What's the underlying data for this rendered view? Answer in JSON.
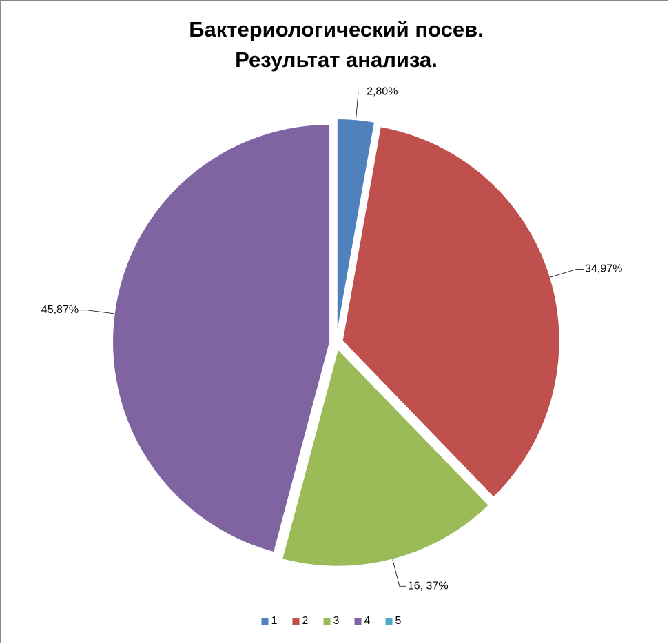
{
  "chart_data": {
    "type": "pie",
    "title": [
      "Бактериологический посев.",
      "Результат анализа."
    ],
    "categories": [
      "1",
      "2",
      "3",
      "4",
      "5"
    ],
    "values": [
      2.8,
      34.97,
      16.37,
      45.87,
      0
    ],
    "value_labels": [
      "2,80%",
      "34,97%",
      "16, 37%",
      "45,87%",
      null
    ],
    "colors": [
      "#4f81bd",
      "#c0504d",
      "#9bbb59",
      "#8064a2",
      "#4bacc6"
    ],
    "legend": "bottom"
  }
}
